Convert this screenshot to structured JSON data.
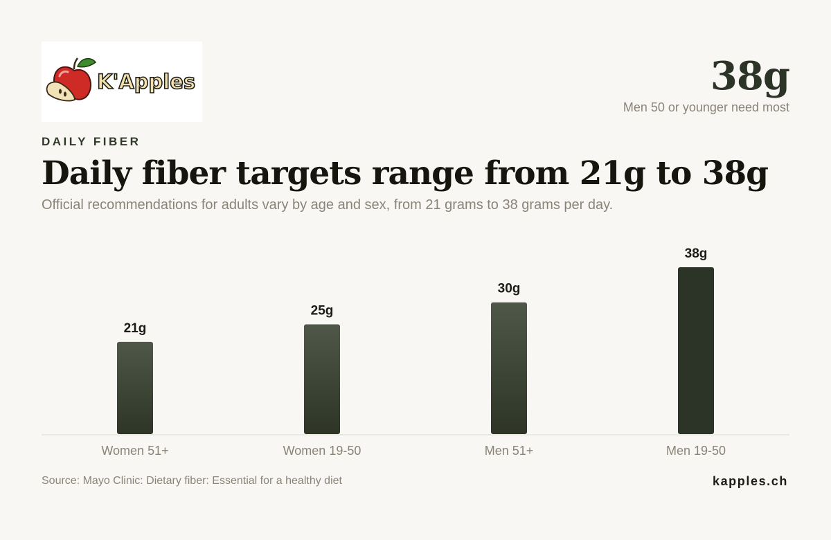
{
  "brand": {
    "logo_text": "K'Apples",
    "site": "kapples.ch"
  },
  "hero": {
    "value": "38g",
    "caption": "Men 50 or younger need most"
  },
  "header": {
    "kicker": "DAILY FIBER",
    "title": "Daily fiber targets range from 21g to 38g",
    "subtitle": "Official recommendations for adults vary by age and sex, from 21 grams to 38 grams per day."
  },
  "source": "Source: Mayo Clinic: Dietary fiber: Essential for a healthy diet",
  "colors": {
    "bar_top": "#4e5748",
    "bar_bottom": "#2e3526",
    "bar_highlight": "#2b3426",
    "baseline": "#dedbd3"
  },
  "chart_data": {
    "type": "bar",
    "categories": [
      "Women 51+",
      "Women 19-50",
      "Men 51+",
      "Men 19-50"
    ],
    "values": [
      21,
      25,
      30,
      38
    ],
    "value_labels": [
      "21g",
      "25g",
      "30g",
      "38g"
    ],
    "highlight_index": 3,
    "ylim": [
      0,
      38
    ],
    "grid": false
  }
}
